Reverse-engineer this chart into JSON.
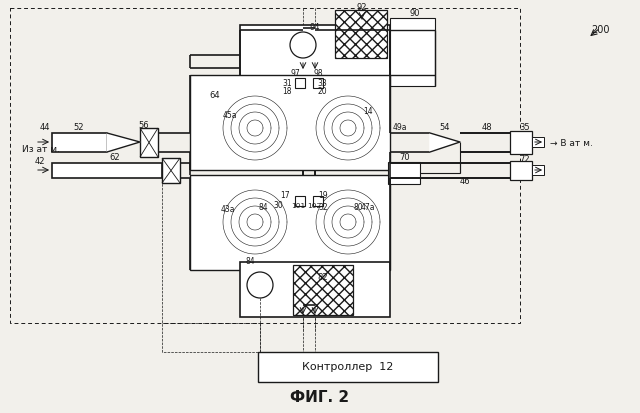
{
  "bg_color": "#f2f0eb",
  "line_color": "#1a1a1a",
  "fig_label": "ФИГ. 2",
  "ref_num": "200",
  "controller_label": "Контроллер  12",
  "from_atm": "Из ат м.",
  "to_atm": "→ В ат м."
}
